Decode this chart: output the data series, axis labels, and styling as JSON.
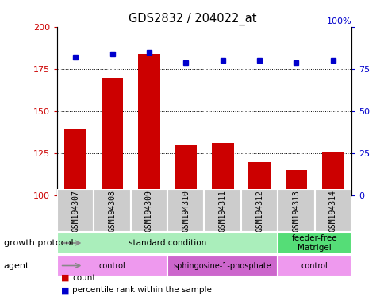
{
  "title": "GDS2832 / 204022_at",
  "samples": [
    "GSM194307",
    "GSM194308",
    "GSM194309",
    "GSM194310",
    "GSM194311",
    "GSM194312",
    "GSM194313",
    "GSM194314"
  ],
  "counts": [
    139,
    170,
    184,
    130,
    131,
    120,
    115,
    126
  ],
  "percentiles": [
    82,
    84,
    85,
    79,
    80,
    80,
    79,
    80
  ],
  "ylim_left": [
    100,
    200
  ],
  "ylim_right": [
    0,
    100
  ],
  "yticks_left": [
    100,
    125,
    150,
    175,
    200
  ],
  "yticks_right": [
    0,
    25,
    50,
    75,
    100
  ],
  "bar_color": "#cc0000",
  "dot_color": "#0000cc",
  "growth_protocol_groups": [
    {
      "label": "standard condition",
      "start": 0,
      "end": 6,
      "color": "#aaeebb"
    },
    {
      "label": "feeder-free\nMatrigel",
      "start": 6,
      "end": 8,
      "color": "#55dd77"
    }
  ],
  "agent_groups": [
    {
      "label": "control",
      "start": 0,
      "end": 3,
      "color": "#ee99ee"
    },
    {
      "label": "sphingosine-1-phosphate",
      "start": 3,
      "end": 6,
      "color": "#cc66cc"
    },
    {
      "label": "control",
      "start": 6,
      "end": 8,
      "color": "#ee99ee"
    }
  ],
  "legend_count_label": "count",
  "legend_pct_label": "percentile rank within the sample",
  "left_axis_color": "#cc0000",
  "right_axis_color": "#0000cc",
  "row_label_growth": "growth protocol",
  "row_label_agent": "agent",
  "ytick_gridlines": [
    125,
    150,
    175
  ],
  "bar_baseline": 100,
  "sample_box_color": "#cccccc",
  "plot_bg_color": "#ffffff",
  "right_axis_label": "100%"
}
